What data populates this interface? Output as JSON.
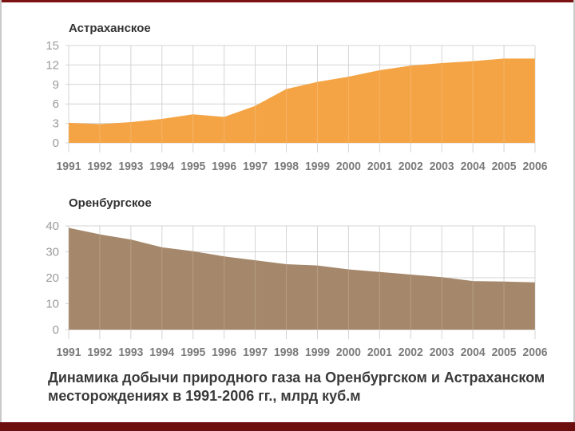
{
  "caption": "Динамика добычи природного газа на Оренбургском и Астраханском месторождениях в 1991-2006 гг., млрд куб.м",
  "chart_data": [
    {
      "type": "area",
      "title": "Астраханское",
      "color": "#f4a445",
      "x": [
        1991,
        1992,
        1993,
        1994,
        1995,
        1996,
        1997,
        1998,
        1999,
        2000,
        2001,
        2002,
        2003,
        2004,
        2005,
        2006
      ],
      "values": [
        3.0,
        2.8,
        3.1,
        3.6,
        4.3,
        3.9,
        5.6,
        8.2,
        9.3,
        10.1,
        11.1,
        11.8,
        12.2,
        12.5,
        12.9,
        12.9
      ],
      "ylim": [
        0,
        15
      ],
      "yticks": [
        0,
        3,
        6,
        9,
        12,
        15
      ],
      "grid": true
    },
    {
      "type": "area",
      "title": "Оренбургское",
      "color": "#a5886b",
      "x": [
        1991,
        1992,
        1993,
        1994,
        1995,
        1996,
        1997,
        1998,
        1999,
        2000,
        2001,
        2002,
        2003,
        2004,
        2005,
        2006
      ],
      "values": [
        39,
        36.5,
        34.5,
        31.5,
        30,
        28,
        26.5,
        25,
        24.5,
        23,
        22,
        21,
        20,
        18.5,
        18.3,
        18
      ],
      "ylim": [
        0,
        40
      ],
      "yticks": [
        0,
        10,
        20,
        30,
        40
      ],
      "grid": true
    }
  ]
}
